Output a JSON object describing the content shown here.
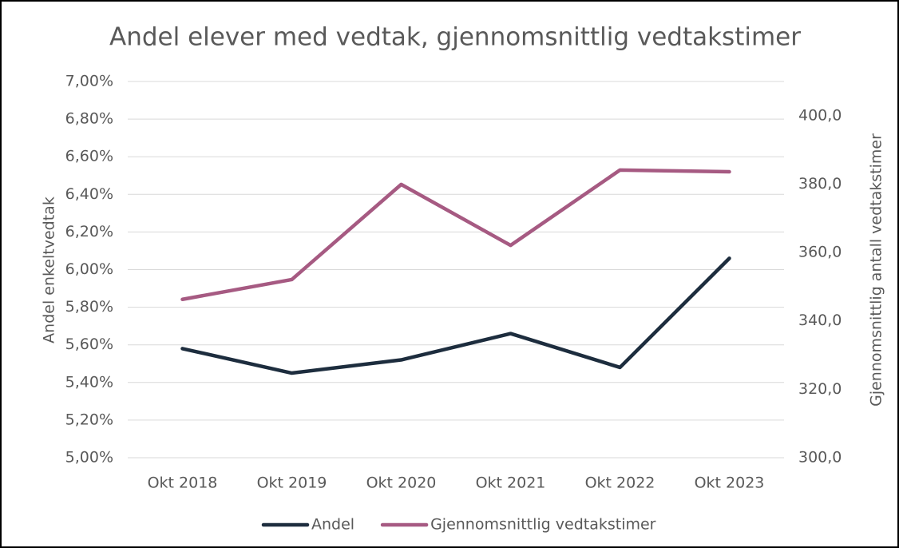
{
  "chart_data": {
    "type": "line",
    "title": "Andel elever med vedtak, gjennomsnittlig vedtakstimer",
    "y_label": "Andel enkeltvedtak",
    "y2_label": "Gjennomsnittlig antall vedtakstimer",
    "categories": [
      "Okt 2018",
      "Okt 2019",
      "Okt 2020",
      "Okt 2021",
      "Okt 2022",
      "Okt 2023"
    ],
    "series": [
      {
        "name": "Andel",
        "color": "#1d2d3e",
        "values": [
          5.58,
          5.45,
          5.52,
          5.66,
          5.48,
          6.06
        ]
      },
      {
        "name": "Gjennomsnittlig vedtakstimer",
        "color": "#a65a82",
        "axis": "y2",
        "values": [
          346.3,
          352.1,
          379.9,
          362.1,
          384.1,
          383.6
        ]
      }
    ],
    "ylim": [
      5.0,
      7.0
    ],
    "yticks": [
      {
        "value": 5.0,
        "label": "5,00%"
      },
      {
        "value": 5.2,
        "label": "5,20%"
      },
      {
        "value": 5.4,
        "label": "5,40%"
      },
      {
        "value": 5.6,
        "label": "5,60%"
      },
      {
        "value": 5.8,
        "label": "5,80%"
      },
      {
        "value": 6.0,
        "label": "6,00%"
      },
      {
        "value": 6.2,
        "label": "6,20%"
      },
      {
        "value": 6.4,
        "label": "6,40%"
      },
      {
        "value": 6.6,
        "label": "6,60%"
      },
      {
        "value": 6.8,
        "label": "6,80%"
      },
      {
        "value": 7.0,
        "label": "7,00%"
      }
    ],
    "y2lim": [
      300,
      410
    ],
    "y2ticks": [
      {
        "value": 300,
        "label": "300,0"
      },
      {
        "value": 320,
        "label": "320,0"
      },
      {
        "value": 340,
        "label": "340,0"
      },
      {
        "value": 360,
        "label": "360,0"
      },
      {
        "value": 380,
        "label": "380,0"
      },
      {
        "value": 400,
        "label": "400,0"
      }
    ],
    "grid": true,
    "legend": "bottom"
  }
}
